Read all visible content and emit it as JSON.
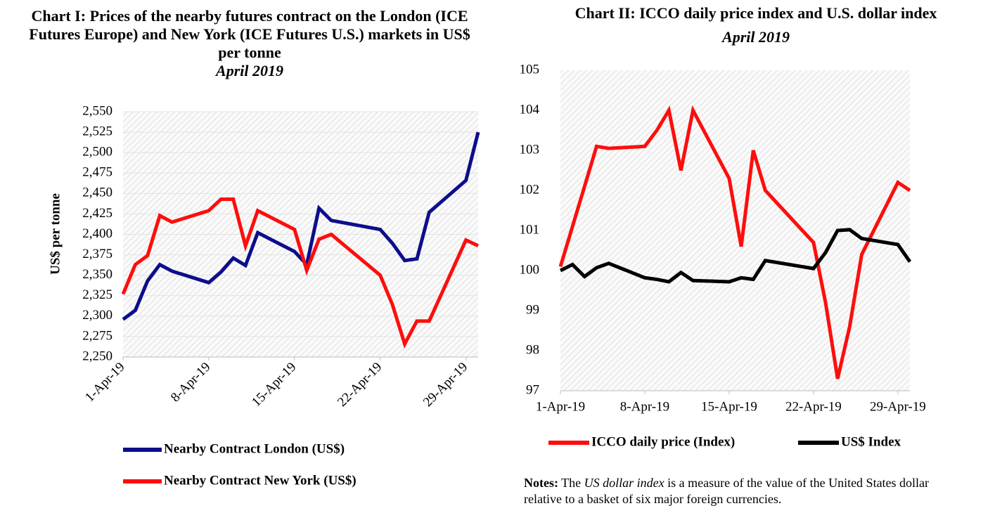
{
  "chart_data": [
    {
      "type": "line",
      "title": "Chart I: Prices of the nearby futures contract on the London (ICE Futures Europe) and New York (ICE Futures U.S.) markets in US$ per tonne",
      "subtitle": "April 2019",
      "y_label": "US$ per tonne",
      "x": [
        "2019-04-01",
        "2019-04-02",
        "2019-04-03",
        "2019-04-04",
        "2019-04-05",
        "2019-04-08",
        "2019-04-09",
        "2019-04-10",
        "2019-04-11",
        "2019-04-12",
        "2019-04-15",
        "2019-04-16",
        "2019-04-17",
        "2019-04-18",
        "2019-04-22",
        "2019-04-23",
        "2019-04-24",
        "2019-04-25",
        "2019-04-26",
        "2019-04-29",
        "2019-04-30"
      ],
      "xlim": [
        "2019-04-01",
        "2019-04-30"
      ],
      "xticks": [
        {
          "value": "2019-04-01",
          "label": "1-Apr-19"
        },
        {
          "value": "2019-04-08",
          "label": "8-Apr-19"
        },
        {
          "value": "2019-04-15",
          "label": "15-Apr-19"
        },
        {
          "value": "2019-04-22",
          "label": "22-Apr-19"
        },
        {
          "value": "2019-04-29",
          "label": "29-Apr-19"
        }
      ],
      "ylim": [
        2250,
        2550
      ],
      "yticks": [
        {
          "value": 2250,
          "label": "2,250"
        },
        {
          "value": 2275,
          "label": "2,275"
        },
        {
          "value": 2300,
          "label": "2,300"
        },
        {
          "value": 2325,
          "label": "2,325"
        },
        {
          "value": 2350,
          "label": "2,350"
        },
        {
          "value": 2375,
          "label": "2,375"
        },
        {
          "value": 2400,
          "label": "2,400"
        },
        {
          "value": 2425,
          "label": "2,425"
        },
        {
          "value": 2450,
          "label": "2,450"
        },
        {
          "value": 2475,
          "label": "2,475"
        },
        {
          "value": 2500,
          "label": "2,500"
        },
        {
          "value": 2525,
          "label": "2,525"
        },
        {
          "value": 2550,
          "label": "2,550"
        }
      ],
      "grid": true,
      "series": [
        {
          "name": "Nearby Contract London (US$)",
          "color": "#0d0d8c",
          "values": [
            2296,
            2307,
            2343,
            2363,
            2355,
            2341,
            2354,
            2371,
            2362,
            2402,
            2379,
            2363,
            2432,
            2417,
            2406,
            2389,
            2368,
            2370,
            2427,
            2466,
            2525
          ]
        },
        {
          "name": "Nearby Contract New York (US$)",
          "color": "#ff0d0d",
          "values": [
            2327,
            2363,
            2374,
            2423,
            2415,
            2429,
            2443,
            2443,
            2386,
            2429,
            2406,
            2356,
            2394,
            2400,
            2350,
            2314,
            2266,
            2294,
            2294,
            2393,
            2386
          ]
        }
      ]
    },
    {
      "type": "line",
      "title": "Chart II: ICCO daily price index and U.S. dollar index",
      "subtitle": "April 2019",
      "x": [
        "2019-04-01",
        "2019-04-02",
        "2019-04-03",
        "2019-04-04",
        "2019-04-05",
        "2019-04-08",
        "2019-04-09",
        "2019-04-10",
        "2019-04-11",
        "2019-04-12",
        "2019-04-15",
        "2019-04-16",
        "2019-04-17",
        "2019-04-18",
        "2019-04-22",
        "2019-04-23",
        "2019-04-24",
        "2019-04-25",
        "2019-04-26",
        "2019-04-29",
        "2019-04-30"
      ],
      "xlim": [
        "2019-04-01",
        "2019-04-30"
      ],
      "xticks": [
        {
          "value": "2019-04-01",
          "label": "1-Apr-19"
        },
        {
          "value": "2019-04-08",
          "label": "8-Apr-19"
        },
        {
          "value": "2019-04-15",
          "label": "15-Apr-19"
        },
        {
          "value": "2019-04-22",
          "label": "22-Apr-19"
        },
        {
          "value": "2019-04-29",
          "label": "29-Apr-19"
        }
      ],
      "ylim": [
        97,
        105
      ],
      "yticks": [
        97,
        98,
        99,
        100,
        101,
        102,
        103,
        104,
        105
      ],
      "grid": false,
      "series": [
        {
          "name": "ICCO daily price (Index)",
          "color": "#ff0d0d",
          "values": [
            100.1,
            101.1,
            102.1,
            103.1,
            103.05,
            103.1,
            103.5,
            104.0,
            102.5,
            104.0,
            102.3,
            100.6,
            103.0,
            102.0,
            100.7,
            99.2,
            97.3,
            98.6,
            100.4,
            102.2,
            102.0
          ]
        },
        {
          "name": "US$ Index",
          "color": "#000000",
          "values": [
            100.0,
            100.15,
            99.85,
            100.07,
            100.18,
            99.82,
            99.78,
            99.72,
            99.95,
            99.75,
            99.72,
            99.82,
            99.78,
            100.25,
            100.05,
            100.45,
            101.0,
            101.02,
            100.8,
            100.65,
            100.22
          ]
        }
      ],
      "notes": {
        "lead": "Notes:",
        "pre": " The ",
        "em": "US dollar index",
        "post": " is a measure of the value of the United States dollar relative to a basket of six major foreign currencies."
      }
    }
  ]
}
